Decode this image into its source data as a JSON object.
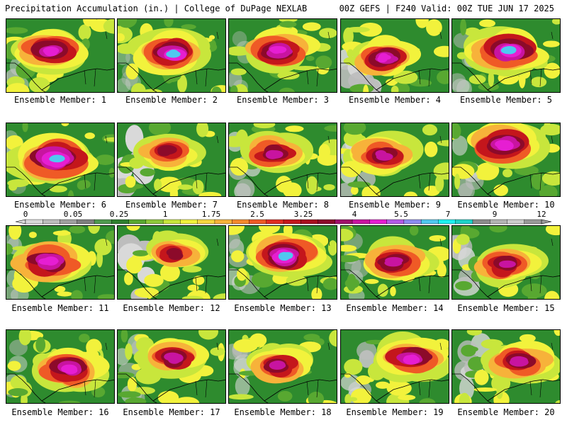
{
  "header": {
    "left": "Precipitation Accumulation (in.) | College of DuPage NEXLAB",
    "right": "00Z GEFS | F240 Valid: 00Z TUE JUN 17 2025"
  },
  "colorbar": {
    "labels": [
      "0",
      "0.05",
      "0.25",
      "1",
      "1.75",
      "2.5",
      "3.25",
      "4",
      "5.5",
      "7",
      "9",
      "12"
    ],
    "colors": [
      "#d9d9d9",
      "#bdbdbd",
      "#a0a0a0",
      "#7f7f7f",
      "#4f9a4f",
      "#2f7f2f",
      "#58a831",
      "#8ec83a",
      "#c8e63c",
      "#f2f23c",
      "#f7d640",
      "#f7b23a",
      "#f48a2e",
      "#ef5a26",
      "#e02c22",
      "#c4161c",
      "#a80f1e",
      "#8c0a2a",
      "#a0106a",
      "#c814a0",
      "#e61ed2",
      "#b45ae6",
      "#8c8cf0",
      "#50c8f0",
      "#1ef0f0",
      "#1ed2c8",
      "#8c8c8c",
      "#b4b4b4",
      "#cccccc",
      "#9a9a9a"
    ]
  },
  "members": [
    {
      "label": "Ensemble Member: 1"
    },
    {
      "label": "Ensemble Member: 2"
    },
    {
      "label": "Ensemble Member: 3"
    },
    {
      "label": "Ensemble Member: 4"
    },
    {
      "label": "Ensemble Member: 5"
    },
    {
      "label": "Ensemble Member: 6"
    },
    {
      "label": "Ensemble Member: 7"
    },
    {
      "label": "Ensemble Member: 8"
    },
    {
      "label": "Ensemble Member: 9"
    },
    {
      "label": "Ensemble Member: 10"
    },
    {
      "label": "Ensemble Member: 11"
    },
    {
      "label": "Ensemble Member: 12"
    },
    {
      "label": "Ensemble Member: 13"
    },
    {
      "label": "Ensemble Member: 14"
    },
    {
      "label": "Ensemble Member: 15"
    },
    {
      "label": "Ensemble Member: 16"
    },
    {
      "label": "Ensemble Member: 17"
    },
    {
      "label": "Ensemble Member: 18"
    },
    {
      "label": "Ensemble Member: 19"
    },
    {
      "label": "Ensemble Member: 20"
    }
  ]
}
